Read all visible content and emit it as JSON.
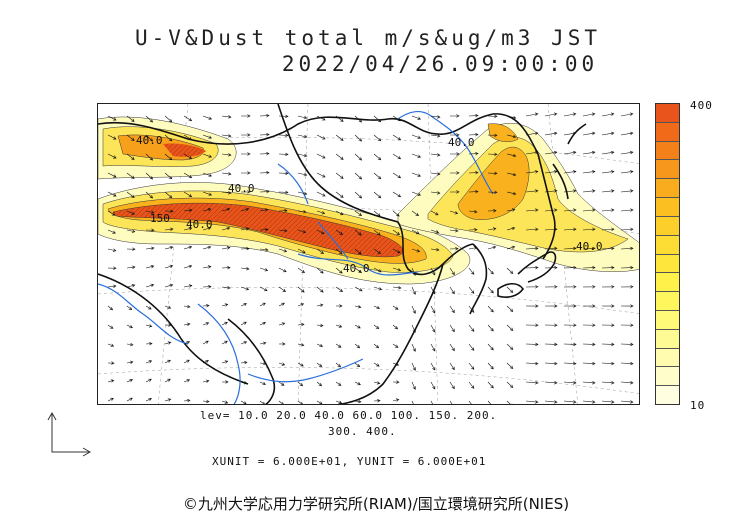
{
  "header": {
    "title": "U-V&Dust total m/s&ug/m3 JST",
    "timestamp": "2022/04/26.09:00:00"
  },
  "colorbar": {
    "max_label": "400",
    "min_label": "10",
    "colors": [
      "#e8541c",
      "#f06a1a",
      "#f4801a",
      "#f7971b",
      "#f9ac1e",
      "#fbbf22",
      "#fccf2a",
      "#fddc33",
      "#fee63c",
      "#fff04a",
      "#fff65e",
      "#fffa78",
      "#fffb94",
      "#fffcb0",
      "#fffdca",
      "#fffee0"
    ]
  },
  "contour_labels": [
    "40.0",
    "40.0",
    "150",
    "40.0",
    "40.0",
    "40.0",
    "40.0"
  ],
  "levels": {
    "line1": "lev= 10.0 20.0 40.0 60.0 100. 150. 200.",
    "line2": "300. 400."
  },
  "units": "XUNIT = 6.000E+01, YUNIT = 6.000E+01",
  "credit": "©九州大学応用力学研究所(RIAM)/国立環境研究所(NIES)"
}
